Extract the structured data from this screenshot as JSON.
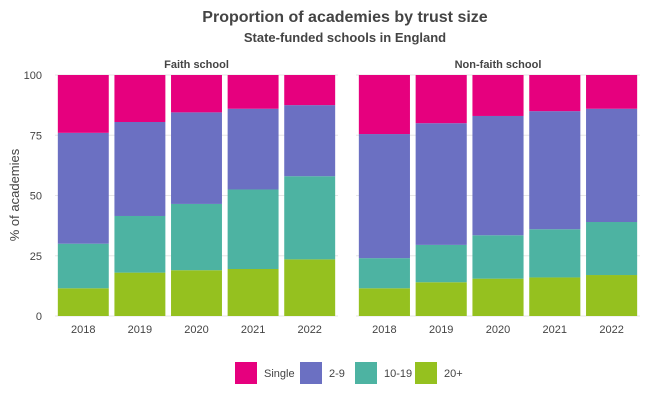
{
  "chart_data": {
    "type": "bar",
    "stacked": true,
    "title": "Proportion of academies by trust size",
    "subtitle": "State-funded schools in England",
    "ylabel": "% of academies",
    "xlabel": "",
    "ylim": [
      0,
      100
    ],
    "yticks": [
      0,
      25,
      50,
      75,
      100
    ],
    "grid": true,
    "legend_position": "bottom",
    "categories": [
      "2018",
      "2019",
      "2020",
      "2021",
      "2022"
    ],
    "legend": [
      {
        "name": "Single",
        "color": "#E6007E"
      },
      {
        "name": "2-9",
        "color": "#6B70C2"
      },
      {
        "name": "10-19",
        "color": "#4DB3A2"
      },
      {
        "name": "20+",
        "color": "#95C11F"
      }
    ],
    "facets": [
      {
        "label": "Faith school",
        "series": [
          {
            "name": "20+",
            "values": [
              11.5,
              18.0,
              19.0,
              19.5,
              23.5
            ]
          },
          {
            "name": "10-19",
            "values": [
              18.5,
              23.5,
              27.5,
              33.0,
              34.5
            ]
          },
          {
            "name": "2-9",
            "values": [
              46.0,
              39.0,
              38.0,
              33.5,
              29.5
            ]
          },
          {
            "name": "Single",
            "values": [
              24.0,
              19.5,
              15.5,
              14.0,
              12.5
            ]
          }
        ]
      },
      {
        "label": "Non-faith school",
        "series": [
          {
            "name": "20+",
            "values": [
              11.5,
              14.0,
              15.5,
              16.0,
              17.0
            ]
          },
          {
            "name": "10-19",
            "values": [
              12.5,
              15.5,
              18.0,
              20.0,
              22.0
            ]
          },
          {
            "name": "2-9",
            "values": [
              51.5,
              50.5,
              49.5,
              49.0,
              47.0
            ]
          },
          {
            "name": "Single",
            "values": [
              24.5,
              20.0,
              17.0,
              15.0,
              14.0
            ]
          }
        ]
      }
    ]
  }
}
